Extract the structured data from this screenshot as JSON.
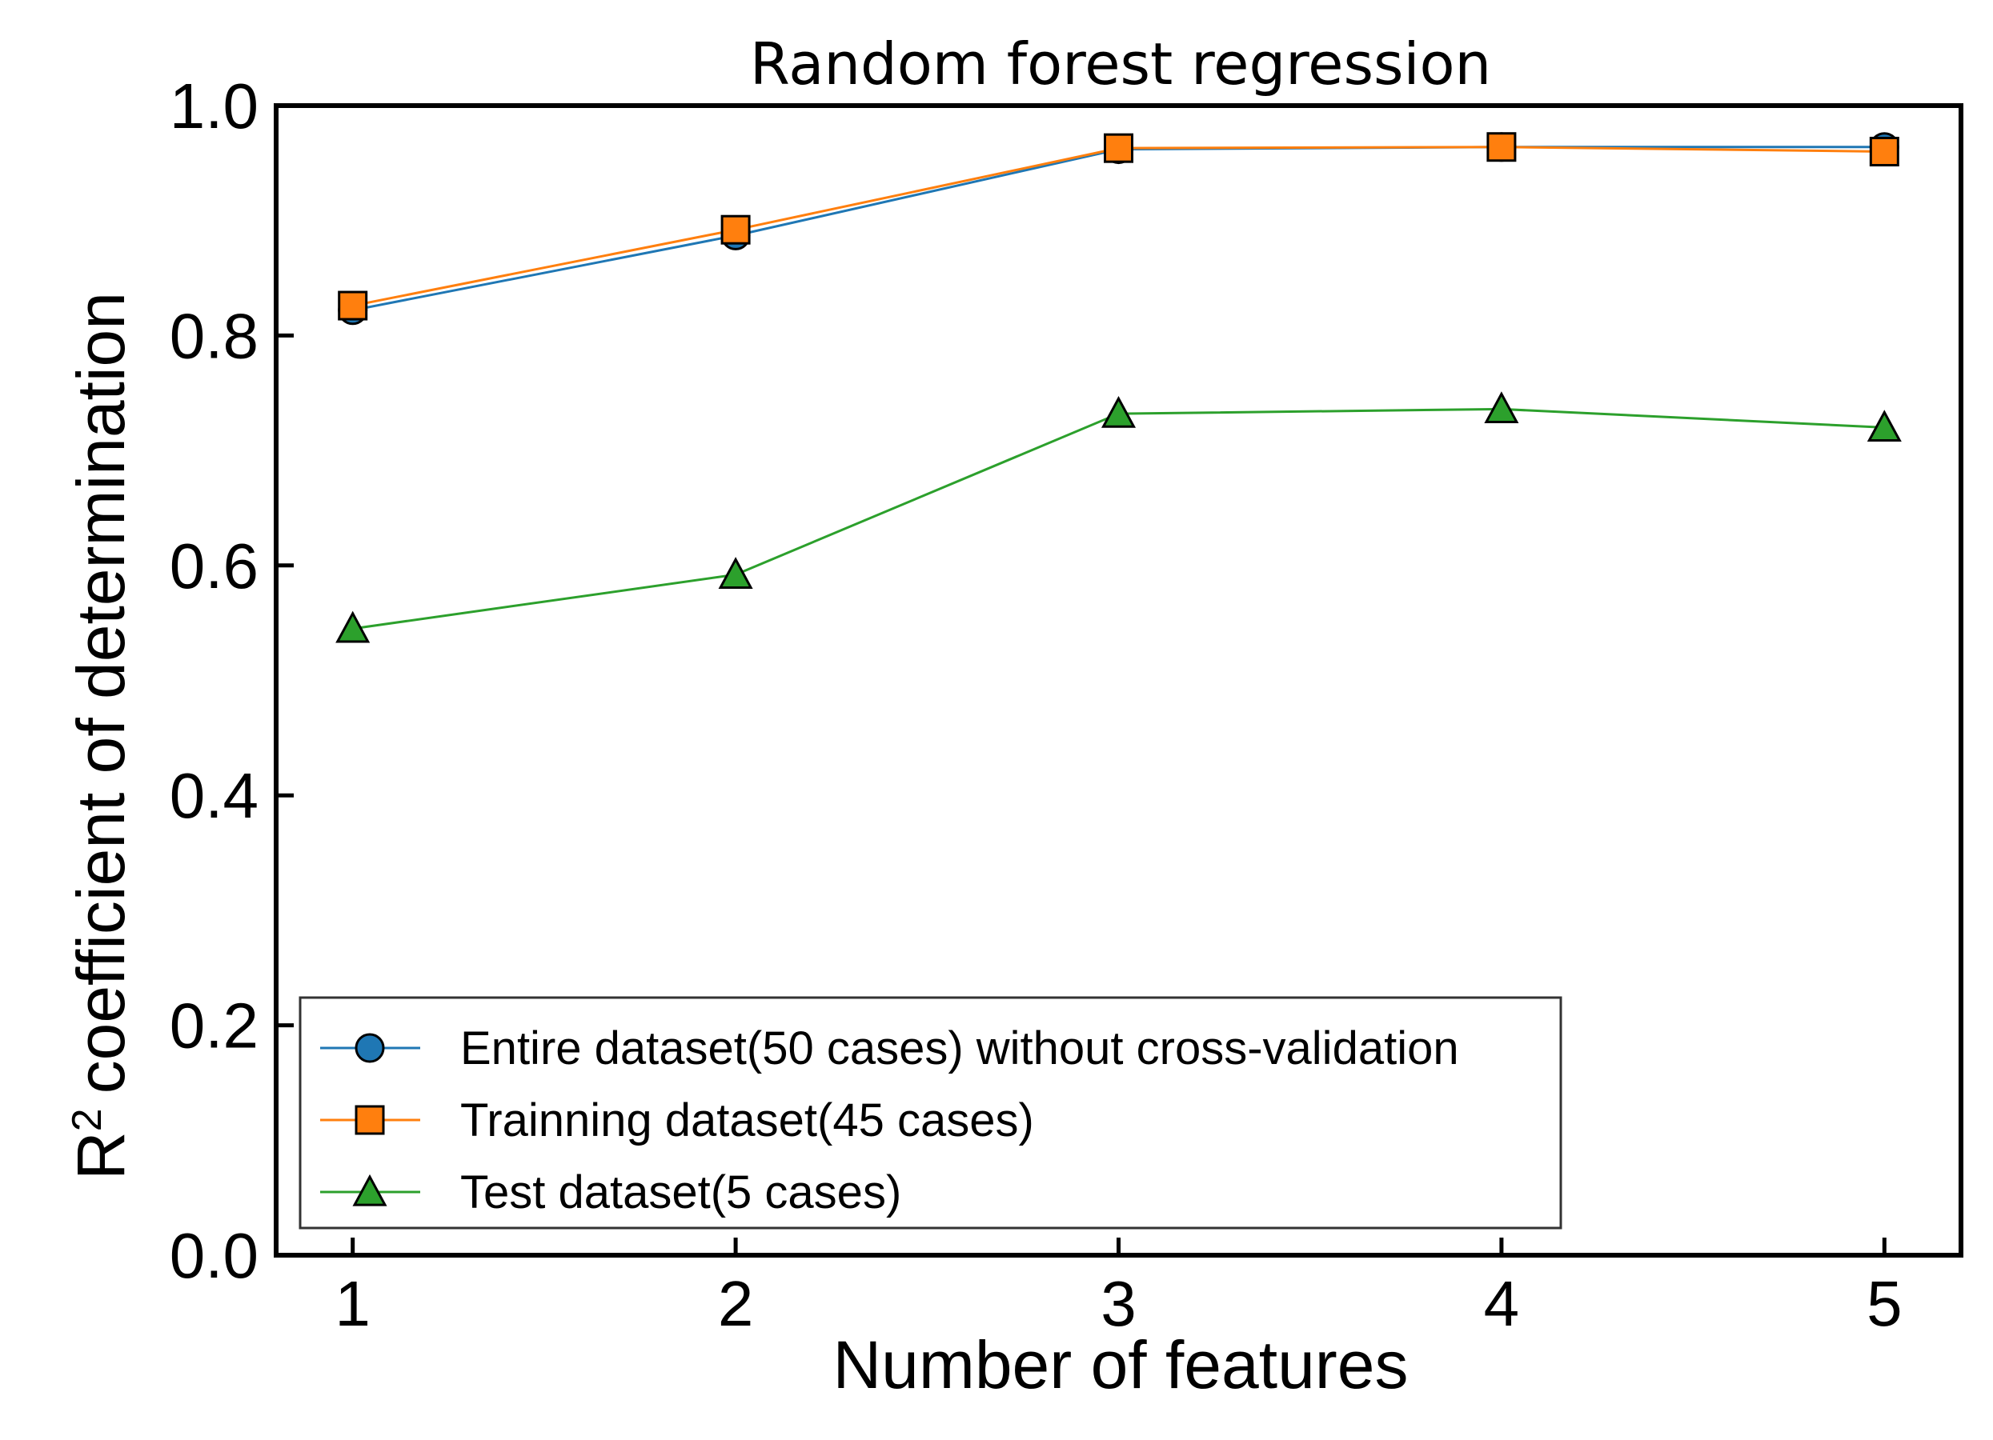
{
  "chart_data": {
    "type": "line",
    "title": "Random forest regression",
    "xlabel": "Number of features",
    "ylabel": {
      "main": "R",
      "superscript": "2",
      "rest": "coefficient of determination"
    },
    "x": [
      1,
      2,
      3,
      4,
      5
    ],
    "x_ticks": [
      "1",
      "2",
      "3",
      "4",
      "5"
    ],
    "xlim": [
      0.8,
      5.2
    ],
    "ylim": [
      0.0,
      1.0
    ],
    "y_ticks": [
      "0.0",
      "0.2",
      "0.4",
      "0.6",
      "0.8",
      "1.0"
    ],
    "grid": false,
    "legend_position": "lower-left",
    "series": [
      {
        "name": "Entire dataset(50 cases) without cross-validation",
        "values": [
          0.822,
          0.887,
          0.962,
          0.964,
          0.964
        ],
        "color": "#1f77b4",
        "marker": "circle"
      },
      {
        "name": "Trainning dataset(45 cases)",
        "values": [
          0.826,
          0.892,
          0.963,
          0.964,
          0.96
        ],
        "color": "#ff7f0e",
        "marker": "square"
      },
      {
        "name": "Test dataset(5 cases)",
        "values": [
          0.545,
          0.592,
          0.732,
          0.736,
          0.72
        ],
        "color": "#2ca02c",
        "marker": "triangle"
      }
    ]
  }
}
